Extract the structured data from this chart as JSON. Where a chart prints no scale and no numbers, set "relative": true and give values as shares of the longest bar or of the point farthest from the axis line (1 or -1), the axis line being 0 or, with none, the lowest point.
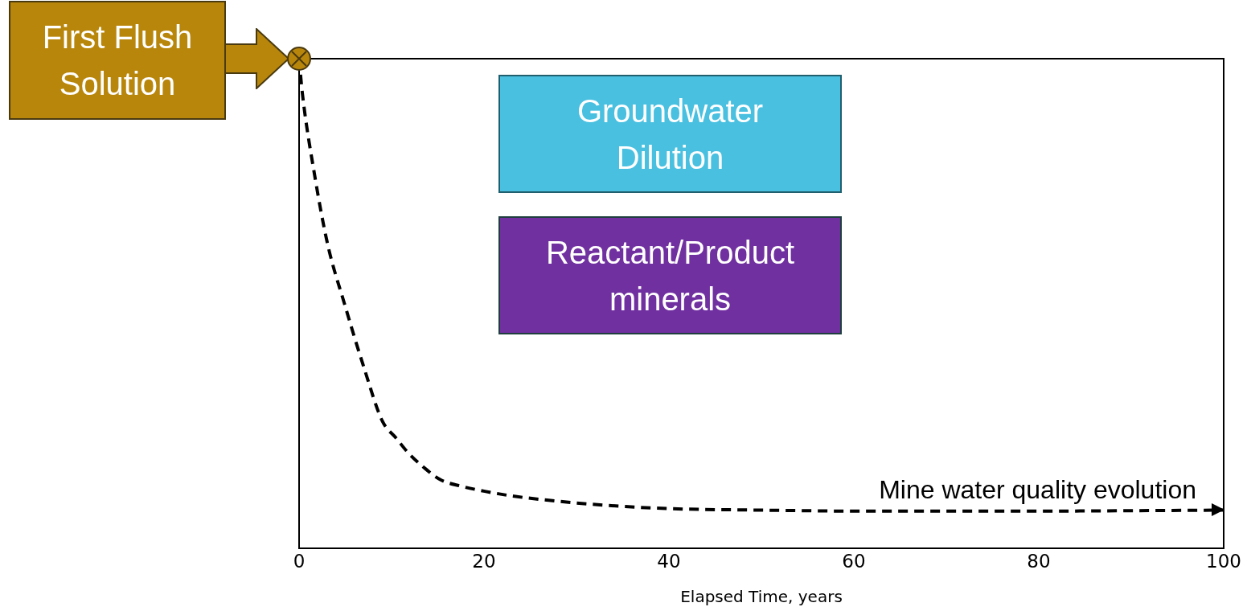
{
  "chart_data": {
    "type": "line",
    "relative": true,
    "xlabel": "Elapsed Time, years",
    "xlim": [
      0,
      100
    ],
    "xticks": [
      0,
      20,
      40,
      60,
      80,
      100
    ],
    "grid": false,
    "legend": false,
    "line_style": "dashed",
    "marker": "none",
    "x": [
      0,
      0.35,
      1.7,
      3.1,
      4.9,
      7,
      9,
      10.5,
      11.8,
      13.5,
      15.3,
      17.5,
      20.2,
      23,
      27,
      33,
      40,
      50,
      60,
      70,
      80,
      100
    ],
    "series": [
      {
        "name": "Mine water quality evolution",
        "color": "#000000",
        "values": [
          1,
          0.93,
          0.76,
          0.62,
          0.5,
          0.37,
          0.26,
          0.225,
          0.195,
          0.165,
          0.14,
          0.127,
          0.116,
          0.107,
          0.098,
          0.088,
          0.081,
          0.078,
          0.076,
          0.076,
          0.076,
          0.078
        ]
      }
    ],
    "annotations": [
      "First Flush Solution",
      "Groundwater Dilution",
      "Reactant/Product minerals"
    ]
  }
}
